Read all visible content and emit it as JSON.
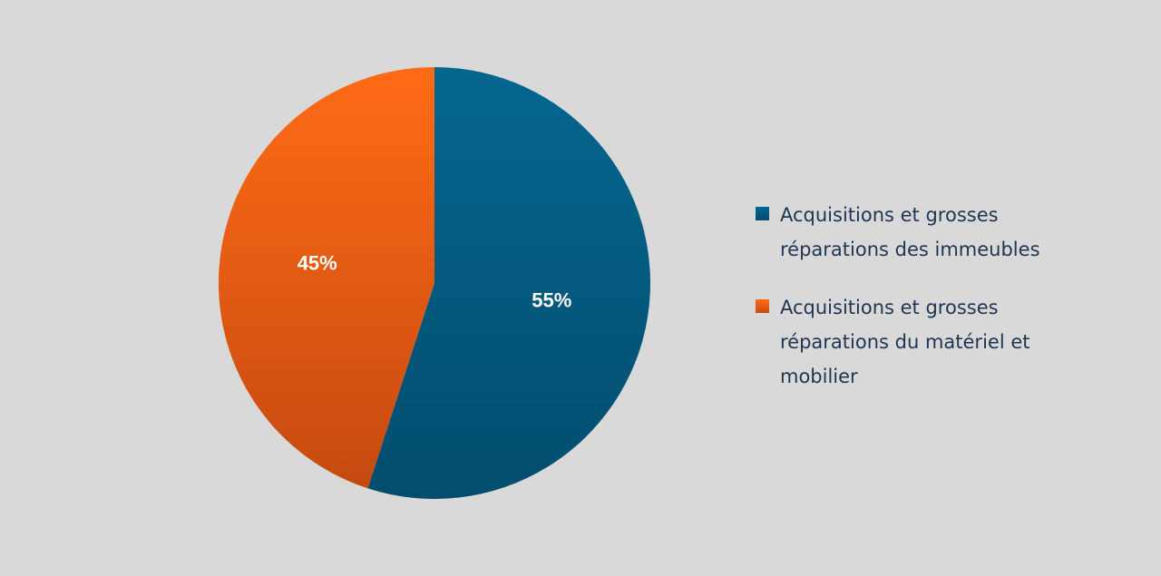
{
  "chart_data": {
    "type": "pie",
    "title": "",
    "start_angle_deg": 0,
    "direction": "clockwise",
    "legend_position": "right",
    "slices": [
      {
        "label": "Acquisitions et grosses réparations des immeubles",
        "value": 55,
        "display": "55%",
        "color_top": "#05668f",
        "color_bottom": "#024d6e"
      },
      {
        "label": "Acquisitions et grosses réparations du matériel et mobilier",
        "value": 45,
        "display": "45%",
        "color_top": "#ff6b16",
        "color_bottom": "#c54a10"
      }
    ]
  }
}
